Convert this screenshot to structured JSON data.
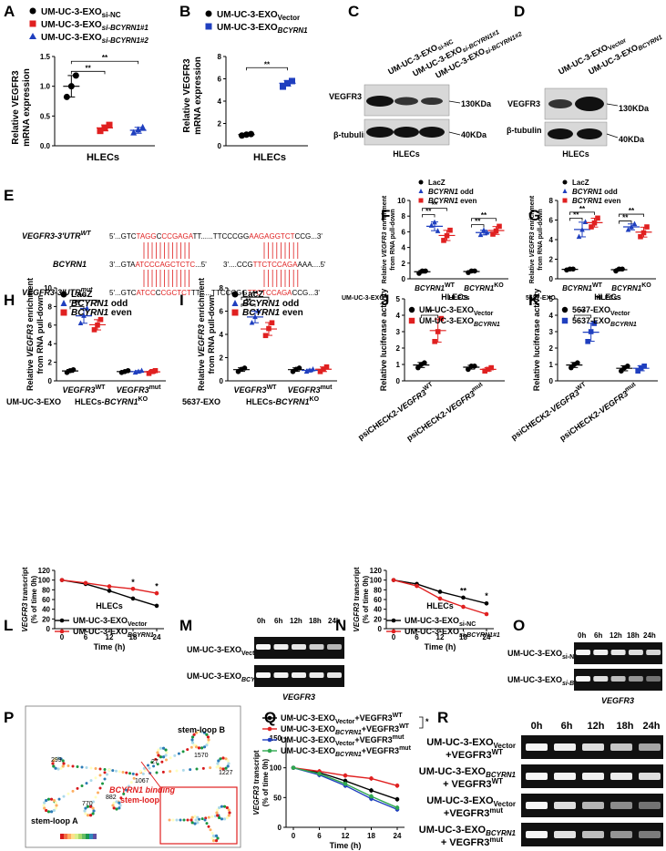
{
  "panels": {
    "A": {
      "letter": "A",
      "legend": [
        {
          "pre": "UM-UC-3-EXO",
          "sub": "si-NC",
          "color": "#000000"
        },
        {
          "pre": "UM-UC-3-EXO",
          "sub": "si-BCYRN1#1",
          "color": "#e02020"
        },
        {
          "pre": "UM-UC-3-EXO",
          "sub": "si-BCYRN1#2",
          "color": "#1f3fbf"
        }
      ],
      "xlabel": "HLECs",
      "ylabel1": "Relative VEGFR3",
      "ylabel2": "mRNA expression",
      "sig1": "**",
      "sig2": "**"
    },
    "B": {
      "letter": "B",
      "legend": [
        {
          "pre": "UM-UC-3-EXO",
          "sub": "Vector",
          "color": "#000000"
        },
        {
          "pre": "UM-UC-3-EXO",
          "sub": "BCYRN1",
          "color": "#1f3fbf"
        }
      ],
      "xlabel": "HLECs",
      "ylabel1": "Relative VEGFR3",
      "ylabel2": "mRNA expression",
      "sig": "**"
    },
    "C": {
      "letter": "C",
      "lanes": [
        {
          "pre": "UM-UC-3-EXO",
          "sub": "si-NC"
        },
        {
          "pre": "UM-UC-3-EXO",
          "sub": "si-BCYRN1#1"
        },
        {
          "pre": "UM-UC-3-EXO",
          "sub": "si-BCYRN1#2"
        }
      ],
      "band1": "VEGFR3",
      "band2": "β-tubulin",
      "kda1": "130KDa",
      "kda2": "40KDa",
      "cell": "HLECs"
    },
    "D": {
      "letter": "D",
      "lanes": [
        {
          "pre": "UM-UC-3-EXO",
          "sub": "Vector"
        },
        {
          "pre": "UM-UC-3-EXO",
          "sub": "BCYRN1"
        }
      ],
      "band1": "VEGFR3",
      "band2": "β-tubulin",
      "kda1": "130KDa",
      "kda2": "40KDa",
      "cell": "HLECs"
    },
    "E": {
      "letter": "E",
      "row1_label": "VEGFR3-3'UTR",
      "row1_sup": "WT",
      "row2_label": "BCYRN1",
      "row3_label": "VEGFR3-3'UTR",
      "row3_sup": "mut",
      "seq1": [
        "5'...GTC",
        "TAGG",
        "C",
        "CCGAGA",
        "TT......TTCCCGG",
        "AAGAGGTCT",
        "CCG...3'"
      ],
      "seq2": [
        "3'...GTA",
        "ATCCCAGCTCTC",
        "...5'",
        "3'....CCG",
        "TTCTCCAGA",
        "AAA....5'"
      ],
      "seq3": [
        "5'...GTC",
        "ATCC",
        "C",
        "CGCTCT",
        "TT......TTCCCGG",
        "TTCTCCAGA",
        "CCG...3'"
      ]
    },
    "F": {
      "letter": "F"
    },
    "G": {
      "letter": "G"
    },
    "H": {
      "letter": "H"
    },
    "I": {
      "letter": "I"
    },
    "J": {
      "letter": "J"
    },
    "K": {
      "letter": "K"
    },
    "L": {
      "letter": "L"
    },
    "M": {
      "letter": "M",
      "times": [
        "0h",
        "6h",
        "12h",
        "18h",
        "24h"
      ],
      "row1": {
        "pre": "UM-UC-3-EXO",
        "sub": "Vector"
      },
      "row2": {
        "pre": "UM-UC-3-EXO",
        "sub": "BCYRN1"
      },
      "caption": "VEGFR3"
    },
    "N": {
      "letter": "N"
    },
    "O": {
      "letter": "O",
      "times": [
        "0h",
        "6h",
        "12h",
        "18h",
        "24h"
      ],
      "row1": {
        "pre": "UM-UC-3-EXO",
        "sub": "si-NC"
      },
      "row2": {
        "pre": "UM-UC-3-EXO",
        "sub": "si-BCYRN1#1"
      },
      "caption": "VEGFR3"
    },
    "P": {
      "letter": "P",
      "labels": {
        "stem_a": "stem-loop A",
        "stem_b": "stem-loop B",
        "binding1": "BCYRN1 binding",
        "binding2": "stem-loop"
      },
      "numbers": [
        "1570",
        "1227",
        "27",
        "1067",
        "299",
        "770",
        "882"
      ]
    },
    "Q": {
      "letter": "Q"
    },
    "R": {
      "letter": "R",
      "times": [
        "0h",
        "6h",
        "12h",
        "18h",
        "24h"
      ],
      "rows": [
        {
          "l1": "UM-UC-3-EXO",
          "s1": "Vector",
          "l2": "+VEGFR3",
          "s2": "WT"
        },
        {
          "l1": "UM-UC-3-EXO",
          "s1": "BCYRN1",
          "l2": "+ VEGFR3",
          "s2": "WT"
        },
        {
          "l1": "UM-UC-3-EXO",
          "s1": "Vector",
          "l2": "+VEGFR3",
          "s2": "mut"
        },
        {
          "l1": "UM-UC-3-EXO",
          "s1": "BCYRN1",
          "l2": "+ VEGFR3",
          "s2": "mut"
        }
      ]
    }
  },
  "chart_data": [
    {
      "panel": "A",
      "type": "scatter",
      "categories": [
        "si-NC",
        "si-BCYRN1#1",
        "si-BCYRN1#2"
      ],
      "points": [
        [
          0.82,
          1.0,
          1.18
        ],
        [
          0.25,
          0.3,
          0.35
        ],
        [
          0.22,
          0.27,
          0.31
        ]
      ],
      "means": [
        1.0,
        0.3,
        0.26
      ],
      "sds": [
        0.18,
        0.05,
        0.05
      ],
      "colors": [
        "#000000",
        "#e02020",
        "#1f3fbf"
      ],
      "markers": [
        "circle",
        "square",
        "triangle"
      ],
      "ylim": [
        0,
        1.5
      ],
      "yticks": [
        "0.0",
        "0.5",
        "1.0",
        "1.5"
      ],
      "xlabel": "HLECs"
    },
    {
      "panel": "B",
      "type": "scatter",
      "categories": [
        "Vector",
        "BCYRN1"
      ],
      "points": [
        [
          0.92,
          1.0,
          1.05
        ],
        [
          5.3,
          5.6,
          5.8
        ]
      ],
      "means": [
        1.0,
        5.6
      ],
      "sds": [
        0.08,
        0.25
      ],
      "colors": [
        "#000000",
        "#1f3fbf"
      ],
      "markers": [
        "circle",
        "square"
      ],
      "ylim": [
        0,
        8
      ],
      "yticks": [
        "0",
        "2",
        "4",
        "6",
        "8"
      ],
      "xlabel": "HLECs"
    },
    {
      "panel": "F",
      "type": "scatter",
      "legend": [
        "LacZ",
        "BCYRN1 odd",
        "BCYRN1 even"
      ],
      "legend_colors": [
        "#000000",
        "#1f3fbf",
        "#e02020"
      ],
      "groups": [
        "BCYRN1WT",
        "BCYRN1KO"
      ],
      "group_sups": [
        "WT",
        "KO"
      ],
      "series": [
        {
          "name": "LacZ",
          "values": [
            [
              0.7,
              1.0,
              1.0
            ],
            [
              0.8,
              1.0,
              1.0
            ]
          ]
        },
        {
          "name": "BCYRN1 odd",
          "values": [
            [
              6.8,
              7.2,
              6.1
            ],
            [
              5.6,
              6.2,
              5.9
            ]
          ]
        },
        {
          "name": "BCYRN1 even",
          "values": [
            [
              4.9,
              5.5,
              6.2
            ],
            [
              5.7,
              6.1,
              6.7
            ]
          ]
        }
      ],
      "ylim": [
        0,
        10
      ],
      "yticks": [
        "0",
        "2",
        "4",
        "6",
        "8",
        "10"
      ],
      "ylabel1": "Relative VEGFR3 enrichment",
      "ylabel2": "from RNA pull-down",
      "row_label": "UM-UC-3-EXO",
      "sub_label": "HLECs",
      "sig": "**"
    },
    {
      "panel": "G",
      "type": "scatter",
      "legend": [
        "LacZ",
        "BCYRN1 odd",
        "BCYRN1 even"
      ],
      "legend_colors": [
        "#000000",
        "#1f3fbf",
        "#e02020"
      ],
      "groups": [
        "BCYRN1WT",
        "BCYRN1KO"
      ],
      "group_sups": [
        "WT",
        "KO"
      ],
      "series": [
        {
          "name": "LacZ",
          "values": [
            [
              0.9,
              1.0,
              1.0
            ],
            [
              0.8,
              1.0,
              1.0
            ]
          ]
        },
        {
          "name": "BCYRN1 odd",
          "values": [
            [
              4.3,
              5.0,
              5.8
            ],
            [
              5.0,
              5.3,
              5.6
            ]
          ]
        },
        {
          "name": "BCYRN1 even",
          "values": [
            [
              5.3,
              5.7,
              6.2
            ],
            [
              4.3,
              4.7,
              5.3
            ]
          ]
        }
      ],
      "ylim": [
        0,
        8
      ],
      "yticks": [
        "0",
        "2",
        "4",
        "6",
        "8"
      ],
      "ylabel1": "Relative VEGFR3 enrichment",
      "ylabel2": "from RNA pull-down",
      "row_label": "5637-EXO",
      "sub_label": "HLECs",
      "sig": "**"
    },
    {
      "panel": "H",
      "type": "scatter",
      "legend": [
        "LacZ",
        "BCYRN1 odd",
        "BCYRN1 even"
      ],
      "legend_colors": [
        "#000000",
        "#1f3fbf",
        "#e02020"
      ],
      "groups": [
        "VEGFR3WT",
        "VEGFR3mut"
      ],
      "group_sups": [
        "WT",
        "mut"
      ],
      "series": [
        {
          "name": "LacZ",
          "values": [
            [
              0.9,
              1.1,
              1.2
            ],
            [
              0.9,
              1.0,
              1.1
            ]
          ]
        },
        {
          "name": "BCYRN1 odd",
          "values": [
            [
              6.2,
              7.0,
              7.8
            ],
            [
              0.9,
              1.0,
              1.1
            ]
          ]
        },
        {
          "name": "BCYRN1 even",
          "values": [
            [
              5.5,
              6.0,
              6.6
            ],
            [
              0.8,
              1.0,
              1.1
            ]
          ]
        }
      ],
      "ylim": [
        0,
        10
      ],
      "yticks": [
        "0",
        "2",
        "4",
        "6",
        "8",
        "10"
      ],
      "ylabel1": "Relative VEGFR3 enrichment",
      "ylabel2": "from RNA pull-down",
      "row_label": "UM-UC-3-EXO",
      "sub_label": "HLECs-BCYRN1KO",
      "sig": "**"
    },
    {
      "panel": "I",
      "type": "scatter",
      "legend": [
        "LacZ",
        "BCYRN1 odd",
        "BCYRN1 even"
      ],
      "legend_colors": [
        "#000000",
        "#1f3fbf",
        "#e02020"
      ],
      "groups": [
        "VEGFR3WT",
        "VEGFR3mut"
      ],
      "group_sups": [
        "WT",
        "mut"
      ],
      "series": [
        {
          "name": "LacZ",
          "values": [
            [
              0.8,
              1.0,
              1.1
            ],
            [
              0.8,
              1.0,
              1.1
            ]
          ]
        },
        {
          "name": "BCYRN1 odd",
          "values": [
            [
              5.0,
              5.5,
              6.0
            ],
            [
              0.8,
              0.9,
              1.0
            ]
          ]
        },
        {
          "name": "BCYRN1 even",
          "values": [
            [
              3.9,
              4.5,
              5.0
            ],
            [
              0.8,
              1.0,
              1.2
            ]
          ]
        }
      ],
      "ylim": [
        0,
        8
      ],
      "yticks": [
        "0",
        "2",
        "4",
        "6",
        "8"
      ],
      "ylabel1": "Relative VEGFR3 enrichment",
      "ylabel2": "from RNA pull-down",
      "row_label": "5637-EXO",
      "sub_label": "HLECs-BCYRN1KO",
      "sig": "**"
    },
    {
      "panel": "J",
      "type": "scatter",
      "title": "HLECs",
      "legend": [
        {
          "pre": "UM-UC-3-EXO",
          "sub": "Vector"
        },
        {
          "pre": "UM-UC-3-EXO",
          "sub": "BCYRN1"
        }
      ],
      "legend_colors": [
        "#000000",
        "#e02020"
      ],
      "groups": [
        "psiCHECK2-VEGFR3WT",
        "psiCHECK2-VEGFR3mut"
      ],
      "group_sups": [
        "WT",
        "mut"
      ],
      "series": [
        {
          "name": "Vector",
          "values": [
            [
              0.8,
              1.0,
              1.1
            ],
            [
              0.7,
              0.9,
              0.9
            ]
          ]
        },
        {
          "name": "BCYRN1",
          "values": [
            [
              2.4,
              3.0,
              3.8
            ],
            [
              0.6,
              0.7,
              0.8
            ]
          ]
        }
      ],
      "ylim": [
        0,
        5
      ],
      "yticks": [
        "0",
        "1",
        "2",
        "3",
        "4",
        "5"
      ],
      "ylabel": "Relative luciferase activity",
      "sig": "**"
    },
    {
      "panel": "K",
      "type": "scatter",
      "title": "HLECs",
      "legend": [
        {
          "pre": "5637-EXO",
          "sub": "Vector"
        },
        {
          "pre": "5637-EXO",
          "sub": "BCYRN1"
        }
      ],
      "legend_colors": [
        "#000000",
        "#1f3fbf"
      ],
      "groups": [
        "psiCHECK2-VEGFR3WT",
        "psiCHECK2-VEGFR3mut"
      ],
      "group_sups": [
        "WT",
        "mut"
      ],
      "series": [
        {
          "name": "Vector",
          "values": [
            [
              0.8,
              1.0,
              1.1
            ],
            [
              0.6,
              0.8,
              0.9
            ]
          ]
        },
        {
          "name": "BCYRN1",
          "values": [
            [
              2.4,
              3.0,
              3.5
            ],
            [
              0.6,
              0.8,
              0.9
            ]
          ]
        }
      ],
      "ylim": [
        0,
        5
      ],
      "yticks": [
        "0",
        "1",
        "2",
        "3",
        "4",
        "5"
      ],
      "ylabel": "Relative luciferase activity",
      "sig": "**"
    },
    {
      "panel": "L",
      "type": "line",
      "title": "HLECs",
      "x": [
        0,
        6,
        12,
        18,
        24
      ],
      "xticks": [
        "0",
        "6",
        "12",
        "18",
        "24"
      ],
      "series": [
        {
          "name": "UM-UC-3-EXOVector",
          "pre": "UM-UC-3-EXO",
          "sub": "Vector",
          "color": "#000000",
          "values": [
            100,
            92,
            78,
            62,
            47
          ]
        },
        {
          "name": "UM-UC-3-EXOBCYRN1",
          "pre": "UM-UC-3-EXO",
          "sub": "BCYRN1",
          "color": "#e02020",
          "values": [
            100,
            94,
            87,
            82,
            73
          ]
        }
      ],
      "ylim": [
        0,
        120
      ],
      "yticks": [
        "0",
        "20",
        "40",
        "60",
        "80",
        "100",
        "120"
      ],
      "xlabel": "Time (h)",
      "ylabel1": "VEGFR3 transcript",
      "ylabel2": "(% of time 0h)",
      "annotations": [
        "*",
        "*"
      ]
    },
    {
      "panel": "N",
      "type": "line",
      "title": "HLECs",
      "x": [
        0,
        6,
        12,
        18,
        24
      ],
      "xticks": [
        "0",
        "6",
        "12",
        "18",
        "24"
      ],
      "series": [
        {
          "name": "UM-UC-3-EXOsi-NC",
          "pre": "UM-UC-3-EXO",
          "sub": "si-NC",
          "color": "#000000",
          "values": [
            100,
            92,
            76,
            64,
            52
          ]
        },
        {
          "name": "UM-UC-3-EXOsi-BCYRN1#1",
          "pre": "UM-UC-3-EXO",
          "sub": "si-BCYRN1#1",
          "color": "#e02020",
          "values": [
            100,
            88,
            62,
            45,
            30
          ]
        }
      ],
      "ylim": [
        0,
        120
      ],
      "yticks": [
        "0",
        "20",
        "40",
        "60",
        "80",
        "100",
        "120"
      ],
      "xlabel": "Time (h)",
      "ylabel1": "VEGFR3 transcript",
      "ylabel2": "(% of time 0h)",
      "annotations": [
        "**",
        "*"
      ]
    },
    {
      "panel": "Q",
      "type": "line",
      "x": [
        0,
        6,
        12,
        18,
        24
      ],
      "xticks": [
        "0",
        "6",
        "12",
        "18",
        "24"
      ],
      "series": [
        {
          "name": "UM-UC-3-EXOVector+VEGFR3WT",
          "pre": "UM-UC-3-EXO",
          "sub": "Vector",
          "post": "+VEGFR3",
          "sup": "WT",
          "color": "#000000",
          "values": [
            100,
            92,
            78,
            62,
            47
          ]
        },
        {
          "name": "UM-UC-3-EXOBCYRN1+VEGFR3WT",
          "pre": "UM-UC-3-EXO",
          "sub": "BCYRN1",
          "post": "+VEGFR3",
          "sup": "WT",
          "color": "#e02020",
          "values": [
            100,
            94,
            87,
            82,
            70
          ]
        },
        {
          "name": "UM-UC-3-EXOVector+VEGFR3mut",
          "pre": "UM-UC-3-EXO",
          "sub": "Vector",
          "post": "+VEGFR3",
          "sup": "mut",
          "color": "#1f3fbf",
          "values": [
            100,
            88,
            70,
            48,
            30
          ]
        },
        {
          "name": "UM-UC-3-EXOBCYRN1+VEGFR3mut",
          "pre": "UM-UC-3-EXO",
          "sub": "BCYRN1",
          "post": "+VEGFR3",
          "sup": "mut",
          "color": "#2fa84f",
          "values": [
            100,
            90,
            73,
            52,
            33
          ]
        }
      ],
      "ylim": [
        0,
        150
      ],
      "yticks": [
        "0",
        "50",
        "100",
        "150"
      ],
      "xlabel": "Time (h)",
      "ylabel1": "VEGFR3 transcript",
      "ylabel2": "(% of time 0h)",
      "annotations": [
        "*"
      ]
    }
  ]
}
